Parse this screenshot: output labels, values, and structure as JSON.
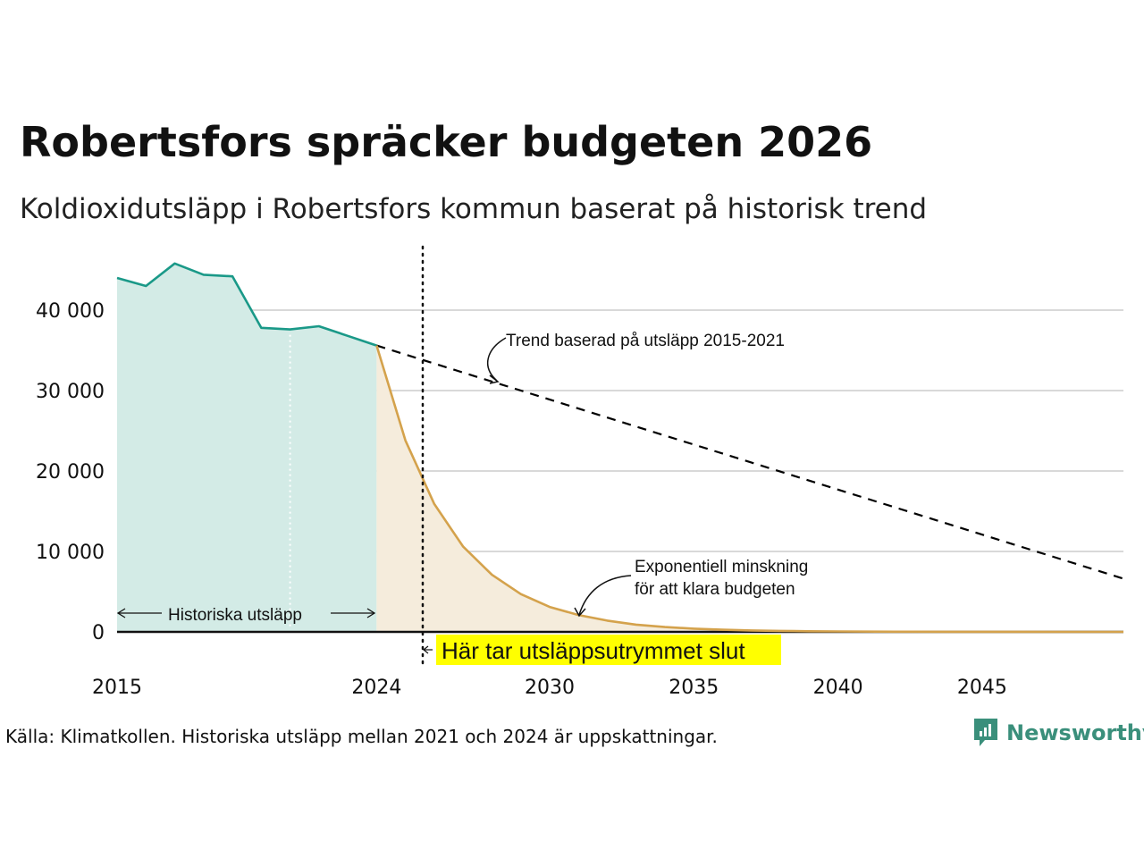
{
  "header": {
    "title": "Robertsfors spräcker budgeten 2026",
    "subtitle": "Koldioxidutsläpp i Robertsfors kommun baserat på historisk trend"
  },
  "footer": {
    "source": "Källa: Klimatkollen. Historiska utsläpp mellan 2021 och 2024 är uppskattningar.",
    "brand": "Newsworthy"
  },
  "colors": {
    "historical_line": "#1a9988",
    "historical_fill": "#d3ebe6",
    "projection_line": "#d4a24c",
    "projection_fill": "#f5ecdc",
    "trend_line": "#000000",
    "grid": "#d9d9d9",
    "highlight": "#ffff00",
    "brand": "#3a8f7b"
  },
  "chart_data": {
    "type": "area",
    "x_range": [
      2015,
      2049.9
    ],
    "ylim": [
      0,
      46000
    ],
    "y_ticks": [
      {
        "value": 0,
        "label": "0"
      },
      {
        "value": 10000,
        "label": "10 000"
      },
      {
        "value": 20000,
        "label": "20 000"
      },
      {
        "value": 30000,
        "label": "30 000"
      },
      {
        "value": 40000,
        "label": "40 000"
      }
    ],
    "x_ticks": [
      {
        "value": 2015,
        "label": "2015"
      },
      {
        "value": 2024,
        "label": "2024"
      },
      {
        "value": 2030,
        "label": "2030"
      },
      {
        "value": 2035,
        "label": "2035"
      },
      {
        "value": 2040,
        "label": "2040"
      },
      {
        "value": 2045,
        "label": "2045"
      }
    ],
    "series": [
      {
        "name": "Historiska utsläpp",
        "x": [
          2015,
          2016,
          2017,
          2018,
          2019,
          2020,
          2021,
          2022,
          2023,
          2024
        ],
        "values": [
          44000,
          43000,
          45800,
          44400,
          44200,
          37800,
          37600,
          38000,
          36800,
          35600
        ]
      },
      {
        "name": "Exponentiell minskning",
        "x": [
          2024,
          2025,
          2026,
          2027,
          2028,
          2029,
          2030,
          2031,
          2032,
          2033,
          2034,
          2035,
          2036,
          2037,
          2038,
          2039,
          2040,
          2042,
          2044,
          2046,
          2048,
          2050
        ],
        "values": [
          35600,
          23800,
          15900,
          10600,
          7100,
          4700,
          3100,
          2100,
          1400,
          900,
          600,
          400,
          270,
          180,
          120,
          80,
          50,
          25,
          12,
          6,
          3,
          1
        ]
      },
      {
        "name": "Trend baserad på utsläpp 2015-2021",
        "x": [
          2024,
          2050
        ],
        "values": [
          35600,
          6500
        ]
      }
    ],
    "vertical_markers": [
      {
        "x": 2021,
        "style": "white-dotted"
      },
      {
        "x": 2025.6,
        "style": "black-dotted"
      }
    ],
    "annotations": {
      "trend_label": "Trend baserad på utsläpp 2015-2021",
      "exp_label_line1": "Exponentiell minskning",
      "exp_label_line2": "för att klara budgeten",
      "historical_label": "Historiska utsläpp",
      "budget_end_label": "Här tar utsläppsutrymmet slut"
    }
  }
}
